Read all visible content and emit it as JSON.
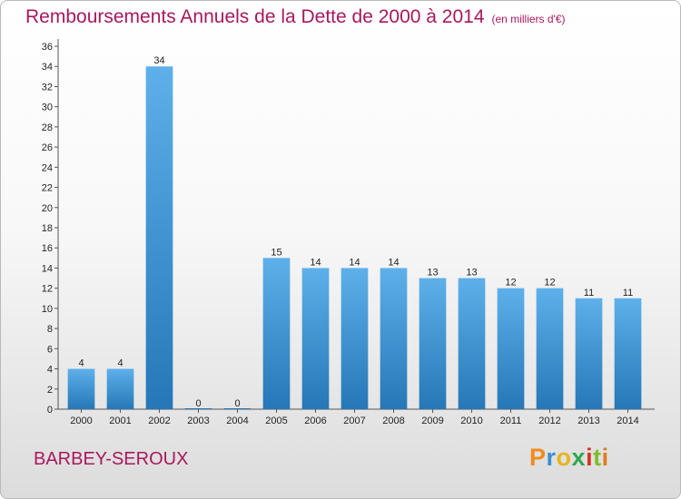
{
  "header": {
    "title": "Remboursements Annuels de la Dette de 2000 à 2014",
    "subtitle": "(en milliers d'€)"
  },
  "footer": {
    "place": "BARBEY-SEROUX",
    "logo_text": "Proxiti"
  },
  "colors": {
    "title": "#a8185d",
    "bar_light": "#5eb0ea",
    "bar_dark": "#2577b7",
    "logo": [
      "#f08c1e",
      "#3a8fd0",
      "#e8b41e",
      "#2fa84f",
      "#d8321e",
      "#7fbf2a",
      "#e07b1e"
    ]
  },
  "chart_data": {
    "type": "bar",
    "title": "Remboursements Annuels de la Dette de 2000 à 2014",
    "subtitle": "(en milliers d'€)",
    "xlabel": "",
    "ylabel": "",
    "categories": [
      "2000",
      "2001",
      "2002",
      "2003",
      "2004",
      "2005",
      "2006",
      "2007",
      "2008",
      "2009",
      "2010",
      "2011",
      "2012",
      "2013",
      "2014"
    ],
    "values": [
      4,
      4,
      34,
      0,
      0,
      15,
      14,
      14,
      14,
      13,
      13,
      12,
      12,
      11,
      11
    ],
    "ylim": [
      0,
      36
    ],
    "yticks": [
      0,
      2,
      4,
      6,
      8,
      10,
      12,
      14,
      16,
      18,
      20,
      22,
      24,
      26,
      28,
      30,
      32,
      34,
      36
    ],
    "grid": false,
    "data_labels": true
  }
}
